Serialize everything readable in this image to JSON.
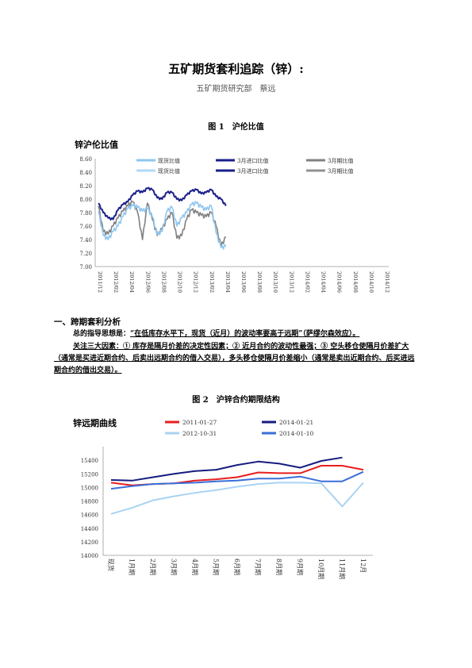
{
  "title": "五矿期货套利追踪（锌）:",
  "author": "五矿期货研究部　蔡远",
  "fig1": {
    "caption": "图 1　沪伦比值",
    "chart_data": {
      "type": "line",
      "title": "锌沪伦比值",
      "ylim": [
        7.0,
        8.6
      ],
      "yticks": [
        "8.60",
        "8.40",
        "8.20",
        "8.00",
        "7.80",
        "7.60",
        "7.40",
        "7.20",
        "7.00"
      ],
      "xticks": [
        "2011/12",
        "2012/02",
        "2012/04",
        "2012/06",
        "2012/08",
        "2012/10",
        "2012/12",
        "2013/02",
        "2013/04",
        "2013/06",
        "2013/08",
        "2013/10",
        "2013/12",
        "2014/02",
        "2014/04",
        "2014/06",
        "2014/08",
        "2014/10",
        "2014/12"
      ],
      "legend": [
        "现货比值",
        "3月进口比值",
        "3月期比值",
        "现货比值",
        "3月进口比值",
        "3月期比值"
      ],
      "colors": [
        "#8ec6f0",
        "#1a1f8a",
        "#808080",
        "#b0d8f5",
        "#1a1f8a",
        "#909090"
      ],
      "grid": false,
      "series": [
        {
          "name": "3月进口比值",
          "values": [
            7.94,
            7.8,
            7.72,
            7.7,
            7.84,
            7.92,
            7.96,
            8.06,
            8.12,
            8.1,
            8.16,
            8.14,
            8.02,
            8.0,
            8.1,
            8.1,
            8.0,
            7.98,
            8.06,
            8.12,
            8.14,
            8.08,
            8.1,
            8.14,
            8.04,
            8.0,
            7.9
          ]
        },
        {
          "name": "现货比值",
          "values": [
            7.82,
            7.46,
            7.4,
            7.52,
            7.6,
            7.74,
            7.86,
            7.9,
            7.88,
            7.82,
            7.86,
            7.74,
            7.48,
            7.52,
            7.82,
            7.88,
            7.6,
            7.72,
            7.8,
            7.92,
            7.94,
            7.88,
            7.84,
            7.9,
            7.5,
            7.28,
            7.3
          ]
        },
        {
          "name": "3月期比值",
          "values": [
            7.9,
            7.52,
            7.48,
            7.6,
            7.72,
            7.82,
            7.9,
            7.96,
            7.8,
            7.4,
            7.94,
            7.7,
            7.46,
            7.56,
            7.7,
            7.8,
            7.42,
            7.46,
            7.7,
            7.84,
            7.8,
            7.76,
            7.74,
            7.8,
            7.6,
            7.3,
            7.44
          ]
        }
      ]
    }
  },
  "section_heading": "一、跨期套利分析",
  "para1_prefix": "总的指导思想是：",
  "para1_emph": "“在低库存水平下，现货（近月）的波动率要高于远期”（萨缪尔森效应）。",
  "para2": "关注三大因素：① 库存是隔月价差的决定性因素；② 近月合约的波动性最强；③ 空头移仓使隔月价差扩大（通常是买进近期合约、后卖出远期合约的借入交易），多头移仓使隔月价差缩小（通常是卖出近期合约、后买进远期合约的借出交易）。",
  "fig2": {
    "caption": "图 2　沪锌合约期限结构",
    "chart_data": {
      "type": "line",
      "title": "锌远期曲线",
      "ylim": [
        14000,
        15600
      ],
      "yticks": [
        "15400",
        "15200",
        "15000",
        "14800",
        "14600",
        "14400",
        "14200",
        "14000"
      ],
      "categories": [
        "现货",
        "1月",
        "2月",
        "3月",
        "4月",
        "5月",
        "6月",
        "7月",
        "8月",
        "9月",
        "10月",
        "11月",
        "12月"
      ],
      "xtick_labels": [
        "现货",
        "1月期",
        "2月期",
        "3月期",
        "4月期",
        "5月期",
        "6月期",
        "7月期",
        "8月期",
        "9月期",
        "10月期",
        "11月期",
        "12月"
      ],
      "series": [
        {
          "name": "2011-01-27",
          "color": "#e81e1e",
          "values": [
            15070,
            15030,
            15050,
            15060,
            15100,
            15120,
            15150,
            15220,
            15210,
            15210,
            15320,
            15320,
            15260
          ]
        },
        {
          "name": "2014-01-21",
          "color": "#161c7e",
          "values": [
            15110,
            15100,
            15150,
            15200,
            15240,
            15260,
            15330,
            15380,
            15350,
            15290,
            15390,
            15440,
            null
          ]
        },
        {
          "name": "2012-10-31",
          "color": "#a9d3f2",
          "values": [
            14610,
            14700,
            14810,
            14870,
            14920,
            14960,
            15010,
            15050,
            15070,
            15070,
            15060,
            14720,
            15070
          ]
        },
        {
          "name": "2014-01-10",
          "color": "#3a6fd8",
          "values": [
            14980,
            15020,
            15050,
            15060,
            15070,
            15090,
            15100,
            15130,
            15130,
            15160,
            15090,
            15090,
            15230
          ]
        }
      ]
    }
  }
}
